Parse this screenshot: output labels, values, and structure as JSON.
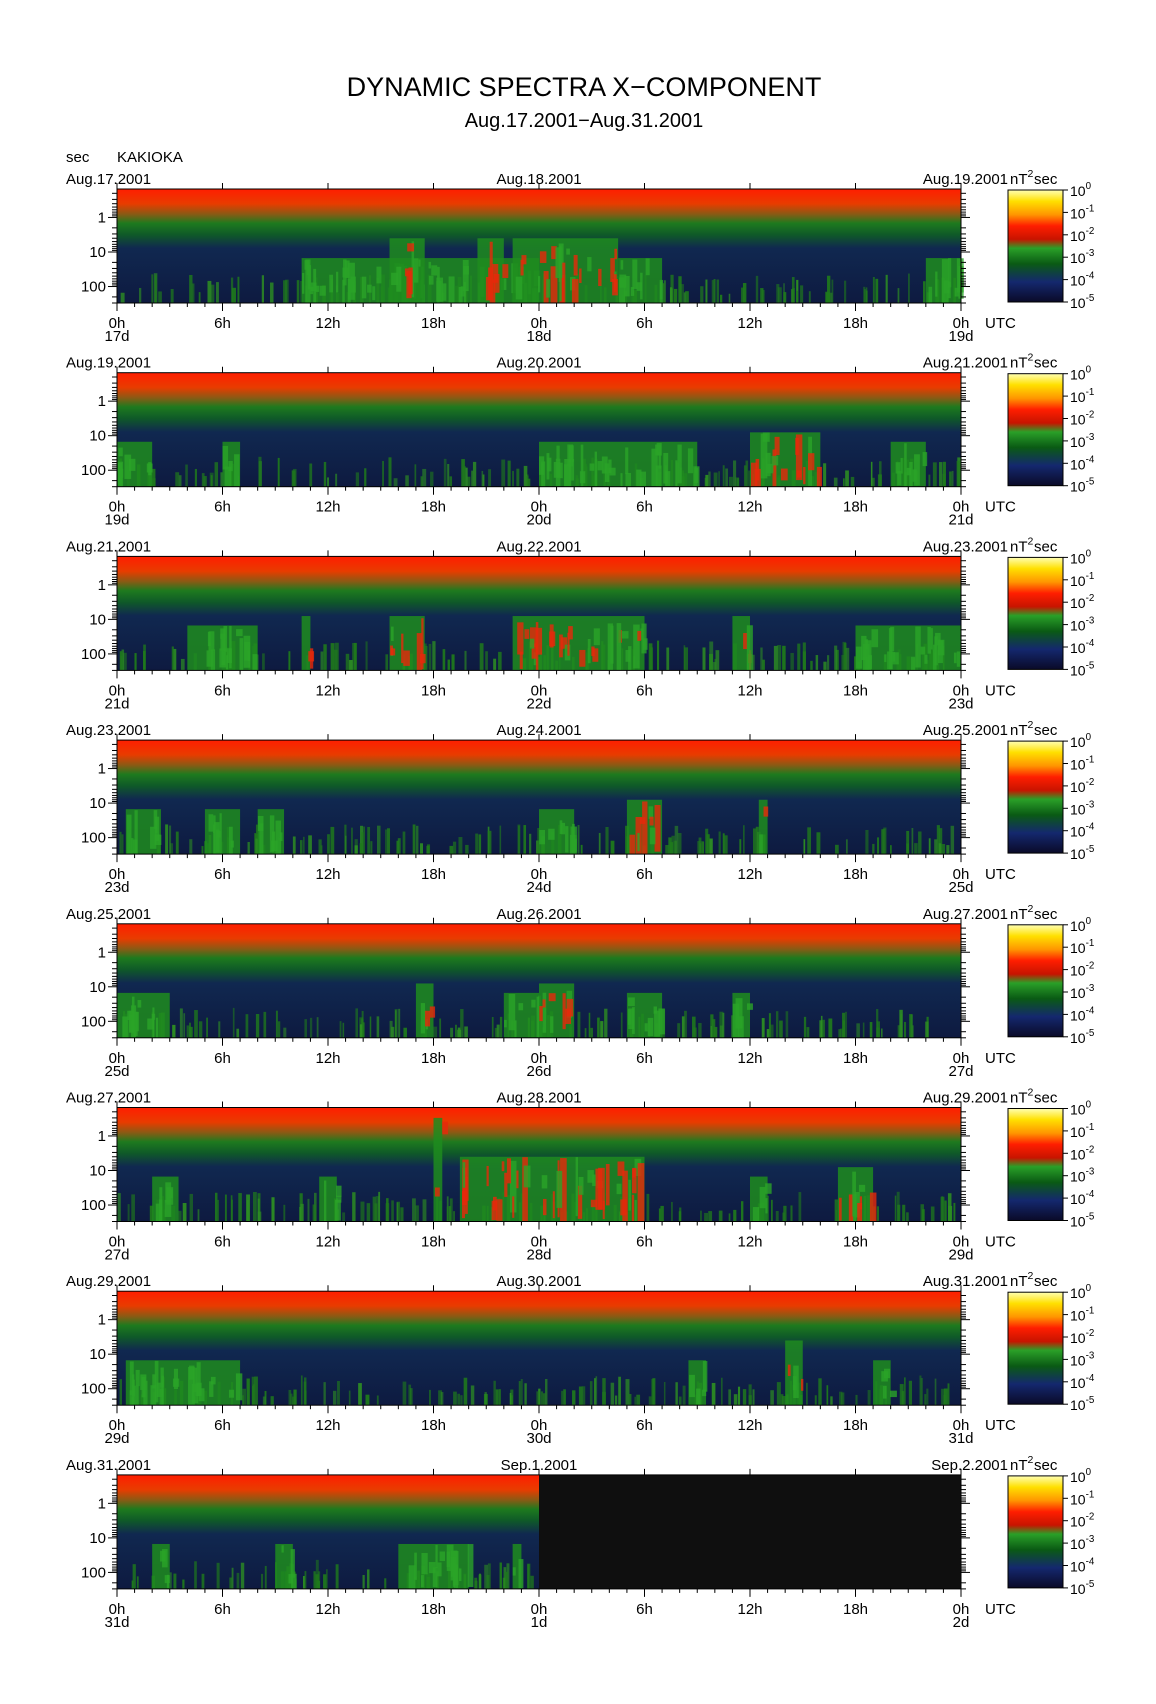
{
  "chart_data": {
    "type": "heatmap",
    "title": "DYNAMIC SPECTRA X−COMPONENT",
    "subtitle": "Aug.17.2001−Aug.31.2001",
    "station": "KAKIOKA",
    "ylabel": "sec",
    "y_scale": "log",
    "y_ticks": [
      "1",
      "10",
      "100"
    ],
    "y_range_sec": [
      0.15,
      300
    ],
    "x_ticks": [
      "0h",
      "6h",
      "12h",
      "18h",
      "0h",
      "6h",
      "12h",
      "18h",
      "0h"
    ],
    "x_unit": "UTC",
    "colorbar": {
      "label": "nT²sec",
      "unit_base": "nT",
      "unit_exp": "2",
      "unit_suffix": "sec",
      "scale": "log",
      "ticks": [
        {
          "base": "10",
          "exp": "0"
        },
        {
          "base": "10",
          "exp": "-1"
        },
        {
          "base": "10",
          "exp": "-2"
        },
        {
          "base": "10",
          "exp": "-3"
        },
        {
          "base": "10",
          "exp": "-4"
        },
        {
          "base": "10",
          "exp": "-5"
        }
      ],
      "colors": [
        "#ffffa0",
        "#ffd700",
        "#ff8c00",
        "#ff1e00",
        "#c81400",
        "#28a028",
        "#0a5a14",
        "#14286e",
        "#0a0a28"
      ]
    },
    "colors": {
      "high_frequency_band": "#ff1e00",
      "mid_band": "#0f6e1e",
      "background": "#121e46",
      "no_data": "#0f0f0f"
    },
    "panels": [
      {
        "left_date": "Aug.17.2001",
        "mid_date": "Aug.18.2001",
        "right_date": "Aug.19.2001",
        "days": [
          "17d",
          "18d",
          "19d"
        ],
        "data_end_h": 48,
        "events": [
          [
            10.5,
            24,
            3,
            "moderate long-period activity"
          ],
          [
            15.5,
            17.5,
            6,
            "red burst"
          ],
          [
            20.5,
            22,
            7,
            "red burst"
          ],
          [
            22.5,
            28.5,
            6,
            "storm-time activity"
          ],
          [
            28.5,
            31,
            3,
            "green"
          ],
          [
            46,
            48,
            3,
            "green"
          ]
        ]
      },
      {
        "left_date": "Aug.19.2001",
        "mid_date": "Aug.20.2001",
        "right_date": "Aug.21.2001",
        "days": [
          "19d",
          "20d",
          "21d"
        ],
        "data_end_h": 48,
        "events": [
          [
            0,
            2,
            3,
            "green"
          ],
          [
            6,
            7,
            3,
            "green"
          ],
          [
            24,
            33,
            2,
            "green"
          ],
          [
            36,
            40,
            4,
            "red patch"
          ],
          [
            44,
            46,
            3,
            "green"
          ]
        ]
      },
      {
        "left_date": "Aug.21.2001",
        "mid_date": "Aug.22.2001",
        "right_date": "Aug.23.2001",
        "days": [
          "21d",
          "22d",
          "23d"
        ],
        "data_end_h": 48,
        "events": [
          [
            4,
            8,
            2,
            "green"
          ],
          [
            10.5,
            11,
            4,
            "red spot"
          ],
          [
            15.5,
            17.5,
            4,
            "red"
          ],
          [
            22.5,
            30,
            5,
            "red"
          ],
          [
            35,
            36,
            5,
            "red"
          ],
          [
            42,
            48,
            2,
            "green"
          ]
        ]
      },
      {
        "left_date": "Aug.23.2001",
        "mid_date": "Aug.24.2001",
        "right_date": "Aug.25.2001",
        "days": [
          "23d",
          "24d",
          "25d"
        ],
        "data_end_h": 48,
        "events": [
          [
            0.5,
            2.5,
            3,
            "red"
          ],
          [
            5,
            7,
            3,
            "red"
          ],
          [
            8,
            9.5,
            2,
            "green"
          ],
          [
            24,
            26,
            3,
            "red"
          ],
          [
            29,
            31,
            4,
            "red"
          ],
          [
            36.5,
            37,
            4,
            "red"
          ]
        ]
      },
      {
        "left_date": "Aug.25.2001",
        "mid_date": "Aug.26.2001",
        "right_date": "Aug.27.2001",
        "days": [
          "25d",
          "26d",
          "27d"
        ],
        "data_end_h": 48,
        "events": [
          [
            0,
            3,
            2,
            "green"
          ],
          [
            17,
            18,
            4,
            "red"
          ],
          [
            22,
            24,
            3,
            "green"
          ],
          [
            24,
            26,
            5,
            "red"
          ],
          [
            29,
            31,
            3,
            "green"
          ],
          [
            35,
            36,
            3,
            "green"
          ]
        ]
      },
      {
        "left_date": "Aug.27.2001",
        "mid_date": "Aug.28.2001",
        "right_date": "Aug.29.2001",
        "days": [
          "27d",
          "28d",
          "29d"
        ],
        "data_end_h": 48,
        "events": [
          [
            2,
            3.5,
            3,
            "red"
          ],
          [
            11.5,
            12.5,
            3,
            "red"
          ],
          [
            18,
            18.5,
            9,
            "sudden commencement"
          ],
          [
            19.5,
            30,
            6,
            "storm-time activity"
          ],
          [
            36,
            37,
            3,
            "green"
          ],
          [
            41,
            43,
            4,
            "red"
          ]
        ]
      },
      {
        "left_date": "Aug.29.2001",
        "mid_date": "Aug.30.2001",
        "right_date": "Aug.31.2001",
        "days": [
          "29d",
          "30d",
          "31d"
        ],
        "data_end_h": 48,
        "events": [
          [
            0.5,
            7,
            3,
            "green"
          ],
          [
            32.5,
            33.5,
            2,
            "green"
          ],
          [
            38,
            39,
            6,
            "red"
          ],
          [
            43,
            44,
            2,
            "green"
          ]
        ]
      },
      {
        "left_date": "Aug.31.2001",
        "mid_date": "Sep.1.2001",
        "right_date": "Sep.2.2001",
        "days": [
          "31d",
          "1d",
          "2d"
        ],
        "data_end_h": 24,
        "events": [
          [
            2,
            3,
            2,
            "green"
          ],
          [
            9,
            10,
            3,
            "green"
          ],
          [
            16,
            20,
            2,
            "green"
          ],
          [
            22.5,
            23,
            3,
            "red"
          ]
        ]
      }
    ]
  }
}
